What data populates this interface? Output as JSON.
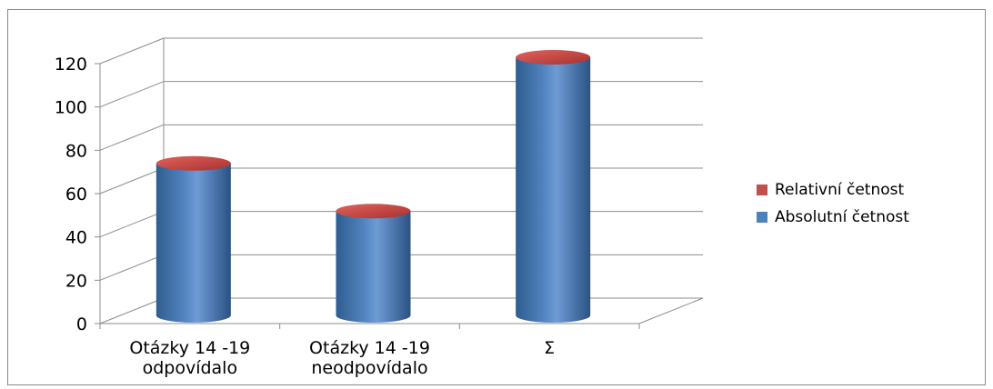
{
  "chart_data": {
    "type": "bar",
    "style": "3d-cylinder",
    "categories": [
      [
        "Otázky 14 -19",
        "odpovídalo"
      ],
      [
        "Otázky 14 -19",
        "neodpovídalo"
      ],
      [
        "Σ"
      ]
    ],
    "series": [
      {
        "name": "Relativní četnost",
        "color": "#c0504d",
        "values": [
          0.6,
          0.4,
          1.0
        ]
      },
      {
        "name": "Absolutní četnost",
        "color": "#4f81bd",
        "values": [
          71,
          49,
          120
        ]
      }
    ],
    "ylim": [
      0,
      120
    ],
    "yticks": [
      "0",
      "20",
      "40",
      "60",
      "80",
      "100",
      "120"
    ],
    "grid": true,
    "legend_position": "right"
  }
}
